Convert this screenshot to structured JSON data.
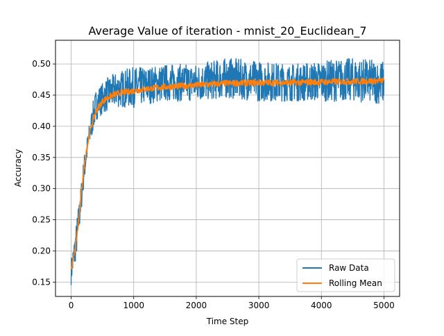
{
  "chart_data": {
    "type": "line",
    "title": "Average Value of iteration - mnist_20_Euclidean_7",
    "xlabel": "Time Step",
    "ylabel": "Accuracy",
    "xlim": [
      -250,
      5250
    ],
    "ylim": [
      0.127,
      0.538
    ],
    "x_ticks": [
      0,
      1000,
      2000,
      3000,
      4000,
      5000
    ],
    "x_tick_labels": [
      "0",
      "1000",
      "2000",
      "3000",
      "4000",
      "5000"
    ],
    "y_ticks": [
      0.15,
      0.2,
      0.25,
      0.3,
      0.35,
      0.4,
      0.45,
      0.5
    ],
    "y_tick_labels": [
      "0.15",
      "0.20",
      "0.25",
      "0.30",
      "0.35",
      "0.40",
      "0.45",
      "0.50"
    ],
    "grid": true,
    "legend_position": "lower-right",
    "series": [
      {
        "name": "Raw Data",
        "color": "#1f77b4",
        "x": [
          0,
          50,
          100,
          150,
          200,
          250,
          300,
          350,
          400,
          500,
          600,
          700,
          800,
          1000,
          1200,
          1500,
          2000,
          2500,
          3000,
          3500,
          4000,
          4500,
          5000
        ],
        "upper": [
          0.19,
          0.22,
          0.26,
          0.3,
          0.35,
          0.38,
          0.41,
          0.44,
          0.46,
          0.47,
          0.48,
          0.485,
          0.49,
          0.495,
          0.495,
          0.5,
          0.5,
          0.51,
          0.505,
          0.5,
          0.505,
          0.51,
          0.505
        ],
        "lower": [
          0.145,
          0.17,
          0.2,
          0.25,
          0.3,
          0.34,
          0.37,
          0.39,
          0.41,
          0.42,
          0.425,
          0.43,
          0.43,
          0.43,
          0.435,
          0.44,
          0.44,
          0.445,
          0.44,
          0.44,
          0.44,
          0.44,
          0.435
        ]
      },
      {
        "name": "Rolling Mean",
        "color": "#ff7f0e",
        "x": [
          0,
          50,
          100,
          150,
          200,
          250,
          300,
          350,
          400,
          500,
          600,
          700,
          800,
          1000,
          1200,
          1500,
          2000,
          2500,
          3000,
          3500,
          4000,
          4500,
          5000
        ],
        "values": [
          0.17,
          0.195,
          0.23,
          0.28,
          0.33,
          0.365,
          0.39,
          0.41,
          0.425,
          0.44,
          0.447,
          0.451,
          0.454,
          0.457,
          0.46,
          0.463,
          0.466,
          0.469,
          0.47,
          0.47,
          0.471,
          0.472,
          0.473
        ]
      }
    ]
  }
}
